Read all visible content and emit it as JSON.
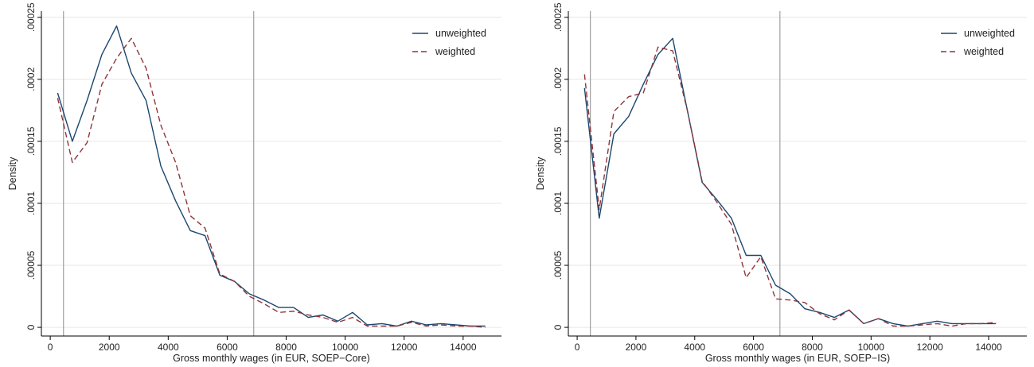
{
  "colors": {
    "unweighted": "#1a476f",
    "weighted": "#90353b",
    "grid": "#e6e6e6",
    "axis": "#000000",
    "threshold": "#8c8c8c"
  },
  "chart_data": [
    {
      "type": "line",
      "title": "",
      "xlabel": "Gross monthly wages (in EUR, SOEP−Core)",
      "ylabel": "Density",
      "xlim": [
        -300,
        15300
      ],
      "ylim": [
        -7e-06,
        0.000255
      ],
      "x_ticks": [
        0,
        2000,
        4000,
        6000,
        8000,
        10000,
        12000,
        14000
      ],
      "x_tick_labels": [
        "0",
        "2000",
        "4000",
        "6000",
        "8000",
        "10000",
        "12000",
        "14000"
      ],
      "y_ticks": [
        0,
        5e-05,
        0.0001,
        0.00015,
        0.0002,
        0.00025
      ],
      "y_tick_labels": [
        "0",
        ".00005",
        ".0001",
        ".00015",
        ".0002",
        ".00025"
      ],
      "grid": true,
      "reference_lines": [
        450,
        6900
      ],
      "legend": {
        "position": "top-right",
        "entries": [
          "unweighted",
          "weighted"
        ]
      },
      "series": [
        {
          "name": "unweighted",
          "style": "solid",
          "x": [
            250,
            750,
            1250,
            1750,
            2250,
            2750,
            3250,
            3750,
            4250,
            4750,
            5250,
            5750,
            6250,
            6750,
            7250,
            7750,
            8250,
            8750,
            9250,
            9750,
            10250,
            10750,
            11250,
            11750,
            12250,
            12750,
            13250,
            13750,
            14250,
            14750
          ],
          "values": [
            0.000189,
            0.00015,
            0.000183,
            0.00022,
            0.000243,
            0.000205,
            0.000183,
            0.00013,
            0.000102,
            7.8e-05,
            7.4e-05,
            4.2e-05,
            3.7e-05,
            2.7e-05,
            2.2e-05,
            1.6e-05,
            1.6e-05,
            8e-06,
            1e-05,
            5e-06,
            1.2e-05,
            2e-06,
            3e-06,
            1e-06,
            5e-06,
            2e-06,
            3e-06,
            2e-06,
            1e-06,
            1e-06
          ]
        },
        {
          "name": "weighted",
          "style": "dashed",
          "x": [
            250,
            750,
            1250,
            1750,
            2250,
            2750,
            3250,
            3750,
            4250,
            4750,
            5250,
            5750,
            6250,
            6750,
            7250,
            7750,
            8250,
            8750,
            9250,
            9750,
            10250,
            10750,
            11250,
            11750,
            12250,
            12750,
            13250,
            13750,
            14250,
            14750
          ],
          "values": [
            0.000185,
            0.000133,
            0.000149,
            0.000196,
            0.000217,
            0.000233,
            0.000209,
            0.000163,
            0.000133,
            9e-05,
            8e-05,
            4.3e-05,
            3.7e-05,
            2.5e-05,
            1.9e-05,
            1.2e-05,
            1.3e-05,
            1e-05,
            8e-06,
            4e-06,
            8e-06,
            1e-06,
            1e-06,
            1e-06,
            4e-06,
            1e-06,
            2e-06,
            1e-06,
            1e-06,
            0.0
          ]
        }
      ]
    },
    {
      "type": "line",
      "title": "",
      "xlabel": "Gross monthly wages (in EUR, SOEP−IS)",
      "ylabel": "Density",
      "xlim": [
        -300,
        15300
      ],
      "ylim": [
        -7e-06,
        0.000255
      ],
      "x_ticks": [
        0,
        2000,
        4000,
        6000,
        8000,
        10000,
        12000,
        14000
      ],
      "x_tick_labels": [
        "0",
        "2000",
        "4000",
        "6000",
        "8000",
        "10000",
        "12000",
        "14000"
      ],
      "y_ticks": [
        0,
        5e-05,
        0.0001,
        0.00015,
        0.0002,
        0.00025
      ],
      "y_tick_labels": [
        "0",
        ".00005",
        ".0001",
        ".00015",
        ".0002",
        ".00025"
      ],
      "grid": true,
      "reference_lines": [
        450,
        6900
      ],
      "legend": {
        "position": "top-right",
        "entries": [
          "unweighted",
          "weighted"
        ]
      },
      "series": [
        {
          "name": "unweighted",
          "style": "solid",
          "x": [
            250,
            750,
            1250,
            1750,
            2250,
            2750,
            3250,
            3750,
            4250,
            4750,
            5250,
            5750,
            6250,
            6750,
            7250,
            7750,
            8250,
            8750,
            9250,
            9750,
            10250,
            10750,
            11250,
            11750,
            12250,
            12750,
            13250,
            13750,
            14250
          ],
          "values": [
            0.000193,
            8.8e-05,
            0.000156,
            0.00017,
            0.000196,
            0.00022,
            0.000233,
            0.000175,
            0.000117,
            0.000103,
            8.8e-05,
            5.8e-05,
            5.8e-05,
            3.4e-05,
            2.7e-05,
            1.5e-05,
            1.2e-05,
            8e-06,
            1.4e-05,
            3e-06,
            7e-06,
            3e-06,
            1e-06,
            3e-06,
            5e-06,
            3e-06,
            3e-06,
            3e-06,
            3e-06
          ]
        },
        {
          "name": "weighted",
          "style": "dashed",
          "x": [
            250,
            750,
            1250,
            1750,
            2250,
            2750,
            3250,
            3750,
            4250,
            4750,
            5250,
            5750,
            6250,
            6750,
            7250,
            7750,
            8250,
            8750,
            9250,
            9750,
            10250,
            10750,
            11250,
            11750,
            12250,
            12750,
            13250,
            13750,
            14250
          ],
          "values": [
            0.000204,
            9.5e-05,
            0.000174,
            0.000186,
            0.000189,
            0.000226,
            0.000223,
            0.000175,
            0.000118,
            0.000101,
            8.3e-05,
            4e-05,
            5.7e-05,
            2.3e-05,
            2.2e-05,
            2e-05,
            1.1e-05,
            6e-06,
            1.4e-05,
            3e-06,
            7e-06,
            1e-06,
            1e-06,
            2e-06,
            3e-06,
            1e-06,
            3e-06,
            3e-06,
            4e-06
          ]
        }
      ]
    }
  ]
}
